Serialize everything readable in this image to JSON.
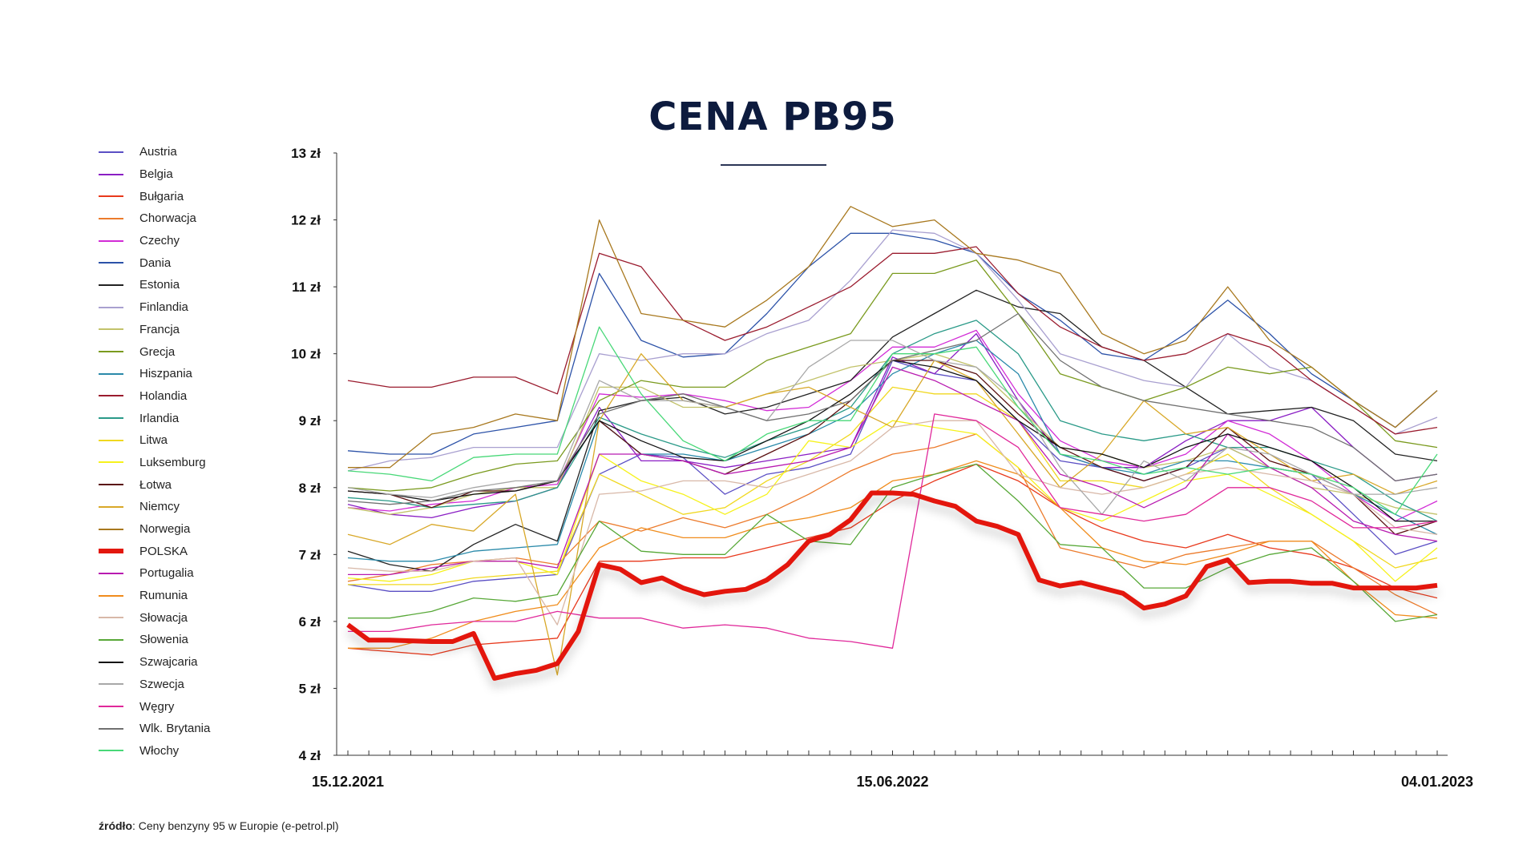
{
  "chart_data": {
    "type": "line",
    "title": "CENA PB95",
    "xlabel": "",
    "ylabel": "",
    "ylim": [
      4,
      13
    ],
    "yticks": [
      "4 zł",
      "5 zł",
      "6 zł",
      "7 zł",
      "8 zł",
      "9 zł",
      "10 zł",
      "11 zł",
      "12 zł",
      "13 zł"
    ],
    "ytick_values": [
      4,
      5,
      6,
      7,
      8,
      9,
      10,
      11,
      12,
      13
    ],
    "x_range_weeks": [
      0,
      52
    ],
    "xtick_labels": [
      {
        "week": 0,
        "label": "15.12.2021"
      },
      {
        "week": 26,
        "label": "15.06.2022"
      },
      {
        "week": 52,
        "label": "04.01.2023"
      }
    ],
    "grid": false,
    "legend_position": "left",
    "series": [
      {
        "name": "Austria",
        "color": "#5b4fc4",
        "values": [
          6.55,
          6.45,
          6.45,
          6.6,
          6.65,
          6.7,
          8.2,
          8.5,
          8.45,
          7.9,
          8.2,
          8.3,
          8.5,
          9.9,
          9.7,
          9.6,
          9.0,
          8.4,
          8.3,
          8.1,
          8.3,
          8.6,
          8.3,
          8.2,
          7.6,
          7.0,
          7.2
        ]
      },
      {
        "name": "Belgia",
        "color": "#8a1ec4",
        "values": [
          7.75,
          7.6,
          7.55,
          7.7,
          7.8,
          8.0,
          9.2,
          8.4,
          8.4,
          8.3,
          8.4,
          8.5,
          8.6,
          9.95,
          9.7,
          10.3,
          9.3,
          8.5,
          8.3,
          8.3,
          8.7,
          9.0,
          9.0,
          9.2,
          8.6,
          8.1,
          8.2
        ]
      },
      {
        "name": "Bułgaria",
        "color": "#e8391c",
        "values": [
          5.6,
          5.55,
          5.5,
          5.65,
          5.7,
          5.75,
          6.9,
          6.9,
          6.95,
          6.95,
          7.1,
          7.25,
          7.4,
          7.8,
          8.1,
          8.35,
          8.1,
          7.7,
          7.4,
          7.2,
          7.1,
          7.3,
          7.1,
          7.0,
          6.8,
          6.5,
          6.35
        ]
      },
      {
        "name": "Chorwacja",
        "color": "#ec7b2c",
        "values": [
          6.6,
          6.7,
          6.85,
          6.9,
          6.95,
          6.85,
          7.5,
          7.35,
          7.55,
          7.4,
          7.6,
          7.9,
          8.25,
          8.5,
          8.6,
          8.8,
          8.3,
          7.1,
          6.95,
          6.8,
          7.0,
          7.1,
          7.2,
          7.2,
          6.8,
          6.4,
          6.1
        ]
      },
      {
        "name": "Czechy",
        "color": "#d22cd6",
        "values": [
          7.7,
          7.65,
          7.75,
          7.8,
          8.0,
          8.05,
          9.4,
          9.35,
          9.4,
          9.3,
          9.15,
          9.2,
          9.6,
          10.1,
          10.1,
          10.35,
          9.4,
          8.7,
          8.4,
          8.3,
          8.5,
          9.0,
          8.8,
          8.4,
          7.9,
          7.5,
          7.8
        ]
      },
      {
        "name": "Dania",
        "color": "#2c52a8",
        "values": [
          8.55,
          8.5,
          8.5,
          8.8,
          8.9,
          9.0,
          11.2,
          10.2,
          9.95,
          10.0,
          10.6,
          11.3,
          11.8,
          11.8,
          11.7,
          11.5,
          10.9,
          10.5,
          10.0,
          9.9,
          10.3,
          10.8,
          10.3,
          9.7,
          9.3,
          8.9,
          9.45
        ]
      },
      {
        "name": "Estonia",
        "color": "#222222",
        "values": [
          7.05,
          6.85,
          6.75,
          7.15,
          7.45,
          7.2,
          9.15,
          9.3,
          9.35,
          9.1,
          9.2,
          9.4,
          9.6,
          10.25,
          10.6,
          10.95,
          10.7,
          10.6,
          10.1,
          9.9,
          9.5,
          9.1,
          9.15,
          9.2,
          9.0,
          8.5,
          8.4
        ]
      },
      {
        "name": "Finlandia",
        "color": "#a9a0d0",
        "values": [
          8.25,
          8.4,
          8.45,
          8.6,
          8.6,
          8.6,
          10.0,
          9.9,
          10.0,
          10.0,
          10.3,
          10.5,
          11.1,
          11.85,
          11.8,
          11.5,
          10.8,
          10.0,
          9.8,
          9.6,
          9.5,
          10.3,
          9.8,
          9.6,
          9.2,
          8.8,
          9.05
        ]
      },
      {
        "name": "Francja",
        "color": "#c2c26a",
        "values": [
          7.7,
          7.6,
          7.7,
          7.9,
          8.0,
          8.0,
          9.5,
          9.5,
          9.2,
          9.2,
          9.4,
          9.6,
          9.8,
          9.9,
          10.0,
          9.8,
          9.2,
          8.6,
          8.5,
          8.3,
          8.4,
          8.6,
          8.3,
          8.0,
          7.9,
          7.7,
          7.6
        ]
      },
      {
        "name": "Grecja",
        "color": "#7a9a1e",
        "values": [
          8.0,
          7.95,
          8.0,
          8.2,
          8.35,
          8.4,
          9.3,
          9.6,
          9.5,
          9.5,
          9.9,
          10.1,
          10.3,
          11.2,
          11.2,
          11.4,
          10.6,
          9.7,
          9.5,
          9.3,
          9.5,
          9.8,
          9.7,
          9.8,
          9.3,
          8.7,
          8.6
        ]
      },
      {
        "name": "Hiszpania",
        "color": "#2a8aaa",
        "values": [
          6.95,
          6.9,
          6.9,
          7.05,
          7.1,
          7.15,
          9.0,
          8.5,
          8.5,
          8.4,
          8.6,
          8.8,
          9.1,
          9.7,
          10.0,
          10.2,
          9.7,
          8.5,
          8.3,
          8.2,
          8.4,
          8.4,
          8.3,
          8.2,
          7.9,
          7.6,
          7.3
        ]
      },
      {
        "name": "Holandia",
        "color": "#9a1b2e",
        "values": [
          9.6,
          9.5,
          9.5,
          9.65,
          9.65,
          9.4,
          11.5,
          11.3,
          10.5,
          10.2,
          10.4,
          10.7,
          11.0,
          11.5,
          11.5,
          11.6,
          10.9,
          10.4,
          10.1,
          9.9,
          10.0,
          10.3,
          10.1,
          9.6,
          9.2,
          8.8,
          8.9
        ]
      },
      {
        "name": "Irlandia",
        "color": "#2a9a88",
        "values": [
          7.85,
          7.8,
          7.7,
          7.75,
          7.8,
          8.0,
          9.05,
          8.8,
          8.6,
          8.45,
          8.7,
          8.9,
          9.2,
          10.0,
          10.3,
          10.5,
          10.0,
          9.0,
          8.8,
          8.7,
          8.8,
          8.6,
          8.6,
          8.4,
          8.2,
          7.8,
          7.5
        ]
      },
      {
        "name": "Litwa",
        "color": "#f0d820",
        "values": [
          6.55,
          6.55,
          6.55,
          6.65,
          6.7,
          6.75,
          8.2,
          7.9,
          7.6,
          7.7,
          8.1,
          8.4,
          8.8,
          9.5,
          9.4,
          9.4,
          9.0,
          8.1,
          8.1,
          8.0,
          8.2,
          8.5,
          8.0,
          7.6,
          7.2,
          6.8,
          6.95
        ]
      },
      {
        "name": "Luksemburg",
        "color": "#f6f21c",
        "values": [
          6.65,
          6.6,
          6.7,
          6.9,
          6.9,
          6.7,
          8.5,
          8.1,
          7.9,
          7.6,
          7.9,
          8.7,
          8.6,
          9.0,
          8.9,
          8.8,
          8.3,
          7.7,
          7.5,
          7.8,
          8.1,
          8.2,
          7.9,
          7.6,
          7.2,
          6.6,
          7.1
        ]
      },
      {
        "name": "Łotwa",
        "color": "#5a1010",
        "values": [
          7.95,
          7.9,
          7.7,
          7.95,
          7.95,
          8.1,
          9.0,
          8.5,
          8.4,
          8.2,
          8.5,
          8.8,
          9.3,
          9.9,
          9.9,
          9.7,
          9.1,
          8.6,
          8.3,
          8.1,
          8.3,
          8.9,
          8.4,
          8.2,
          7.9,
          7.3,
          7.5
        ]
      },
      {
        "name": "Niemcy",
        "color": "#d8a828",
        "values": [
          7.3,
          7.15,
          7.45,
          7.35,
          7.9,
          5.2,
          9.0,
          10.0,
          9.3,
          9.2,
          9.4,
          9.5,
          9.2,
          8.9,
          9.9,
          9.6,
          8.8,
          8.0,
          8.5,
          9.3,
          8.8,
          8.9,
          8.5,
          8.1,
          8.2,
          7.9,
          8.1
        ]
      },
      {
        "name": "Norwegia",
        "color": "#a8781e",
        "values": [
          8.3,
          8.3,
          8.8,
          8.9,
          9.1,
          9.0,
          12.0,
          10.6,
          10.5,
          10.4,
          10.8,
          11.3,
          12.2,
          11.9,
          12.0,
          11.5,
          11.4,
          11.2,
          10.3,
          10.0,
          10.2,
          11.0,
          10.2,
          9.8,
          9.3,
          8.9,
          9.45
        ]
      },
      {
        "name": "POLSKA",
        "color": "#e3180e",
        "bold": true,
        "values": [
          5.95,
          5.72,
          5.72,
          5.71,
          5.7,
          5.7,
          5.82,
          5.15,
          5.22,
          5.27,
          5.37,
          5.85,
          6.85,
          6.78,
          6.58,
          6.65,
          6.5,
          6.4,
          6.45,
          6.48,
          6.62,
          6.85,
          7.2,
          7.3,
          7.52,
          7.92,
          7.92,
          7.9,
          7.8,
          7.72,
          7.5,
          7.42,
          7.3,
          6.62,
          6.53,
          6.58,
          6.5,
          6.42,
          6.2,
          6.26,
          6.38,
          6.82,
          6.92,
          6.58,
          6.6,
          6.6,
          6.57,
          6.57,
          6.5,
          6.5,
          6.5,
          6.5,
          6.54
        ]
      },
      {
        "name": "Portugalia",
        "color": "#b81ab0",
        "values": [
          6.7,
          6.7,
          6.8,
          6.9,
          6.9,
          6.8,
          8.5,
          8.5,
          8.4,
          8.2,
          8.3,
          8.4,
          8.6,
          9.8,
          9.6,
          9.3,
          9.0,
          8.2,
          8.0,
          7.7,
          8.0,
          8.8,
          8.3,
          8.0,
          7.5,
          7.3,
          7.2
        ]
      },
      {
        "name": "Rumunia",
        "color": "#f08c1c",
        "values": [
          5.6,
          5.6,
          5.75,
          6.0,
          6.15,
          6.25,
          7.1,
          7.4,
          7.25,
          7.25,
          7.45,
          7.55,
          7.7,
          8.1,
          8.2,
          8.4,
          8.2,
          7.7,
          7.1,
          6.9,
          6.85,
          7.0,
          7.2,
          7.2,
          6.6,
          6.1,
          6.05
        ]
      },
      {
        "name": "Słowacja",
        "color": "#d8b8a8",
        "values": [
          6.8,
          6.75,
          6.75,
          6.9,
          6.95,
          5.95,
          7.9,
          7.95,
          8.1,
          8.1,
          8.0,
          8.2,
          8.4,
          8.9,
          9.0,
          9.0,
          8.2,
          8.0,
          7.9,
          8.0,
          8.2,
          8.3,
          8.2,
          8.1,
          7.9,
          7.4,
          7.3
        ]
      },
      {
        "name": "Słowenia",
        "color": "#58a838",
        "values": [
          6.05,
          6.05,
          6.15,
          6.35,
          6.3,
          6.4,
          7.5,
          7.05,
          7.0,
          7.0,
          7.6,
          7.2,
          7.15,
          8.0,
          8.2,
          8.35,
          7.8,
          7.15,
          7.1,
          6.5,
          6.5,
          6.8,
          7.0,
          7.1,
          6.6,
          6.0,
          6.1
        ]
      },
      {
        "name": "Szwajcaria",
        "color": "#111111",
        "values": [
          7.95,
          7.9,
          7.8,
          7.9,
          7.95,
          8.1,
          9.0,
          8.7,
          8.45,
          8.4,
          8.7,
          9.0,
          9.4,
          9.9,
          9.8,
          9.6,
          9.0,
          8.6,
          8.5,
          8.3,
          8.6,
          8.8,
          8.6,
          8.4,
          8.0,
          7.5,
          7.5
        ]
      },
      {
        "name": "Szwecja",
        "color": "#a8a8a8",
        "values": [
          8.0,
          7.9,
          7.85,
          8.0,
          8.1,
          8.1,
          9.6,
          9.3,
          9.3,
          9.2,
          9.0,
          9.8,
          10.2,
          10.2,
          9.9,
          9.8,
          9.3,
          8.3,
          7.6,
          8.4,
          8.1,
          8.6,
          8.5,
          8.2,
          7.9,
          7.9,
          8.0
        ]
      },
      {
        "name": "Węgry",
        "color": "#e0289a",
        "values": [
          5.85,
          5.85,
          5.95,
          6.0,
          6.0,
          6.15,
          6.05,
          6.05,
          5.9,
          5.95,
          5.9,
          5.75,
          5.7,
          5.6,
          9.1,
          9.0,
          8.6,
          7.7,
          7.6,
          7.5,
          7.6,
          8.0,
          8.0,
          7.8,
          7.4,
          7.4,
          7.5
        ]
      },
      {
        "name": "Wlk. Brytania",
        "color": "#707070",
        "values": [
          7.8,
          7.75,
          7.8,
          7.95,
          8.0,
          8.1,
          9.1,
          9.3,
          9.4,
          9.2,
          9.0,
          9.1,
          9.3,
          9.9,
          10.05,
          10.2,
          10.6,
          9.9,
          9.5,
          9.3,
          9.2,
          9.1,
          9.0,
          8.9,
          8.6,
          8.1,
          8.2
        ]
      },
      {
        "name": "Włochy",
        "color": "#48d878",
        "values": [
          8.25,
          8.2,
          8.1,
          8.45,
          8.5,
          8.5,
          10.4,
          9.4,
          8.7,
          8.4,
          8.8,
          9.0,
          9.0,
          10.0,
          10.0,
          10.1,
          9.2,
          8.5,
          8.4,
          8.2,
          8.3,
          8.2,
          8.3,
          8.2,
          8.0,
          7.6,
          8.5
        ]
      }
    ]
  },
  "source": {
    "label": "źródło",
    "text": ": Ceny benzyny 95 w Europie (e-petrol.pl)"
  }
}
